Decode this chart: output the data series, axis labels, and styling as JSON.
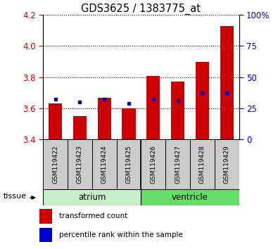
{
  "title": "GDS3625 / 1383775_at",
  "samples": [
    "GSM119422",
    "GSM119423",
    "GSM119424",
    "GSM119425",
    "GSM119426",
    "GSM119427",
    "GSM119428",
    "GSM119429"
  ],
  "red_values": [
    3.63,
    3.55,
    3.67,
    3.6,
    3.81,
    3.77,
    3.9,
    4.13
  ],
  "blue_values": [
    3.66,
    3.64,
    3.66,
    3.63,
    3.66,
    3.65,
    3.7,
    3.7
  ],
  "ylim": [
    3.4,
    4.2
  ],
  "yticks_left": [
    3.4,
    3.6,
    3.8,
    4.0,
    4.2
  ],
  "yticks_right": [
    0,
    25,
    50,
    75,
    100
  ],
  "yticks_right_labels": [
    "0",
    "25",
    "50",
    "75",
    "100%"
  ],
  "bar_bottom": 3.4,
  "atrium_color": "#c8f0c8",
  "ventricle_color": "#66dd66",
  "tissue_label": "tissue",
  "red_color": "#cc0000",
  "blue_color": "#0000cc",
  "bar_width": 0.55,
  "xticklabel_bg": "#cccccc",
  "legend_red": "transformed count",
  "legend_blue": "percentile rank within the sample"
}
